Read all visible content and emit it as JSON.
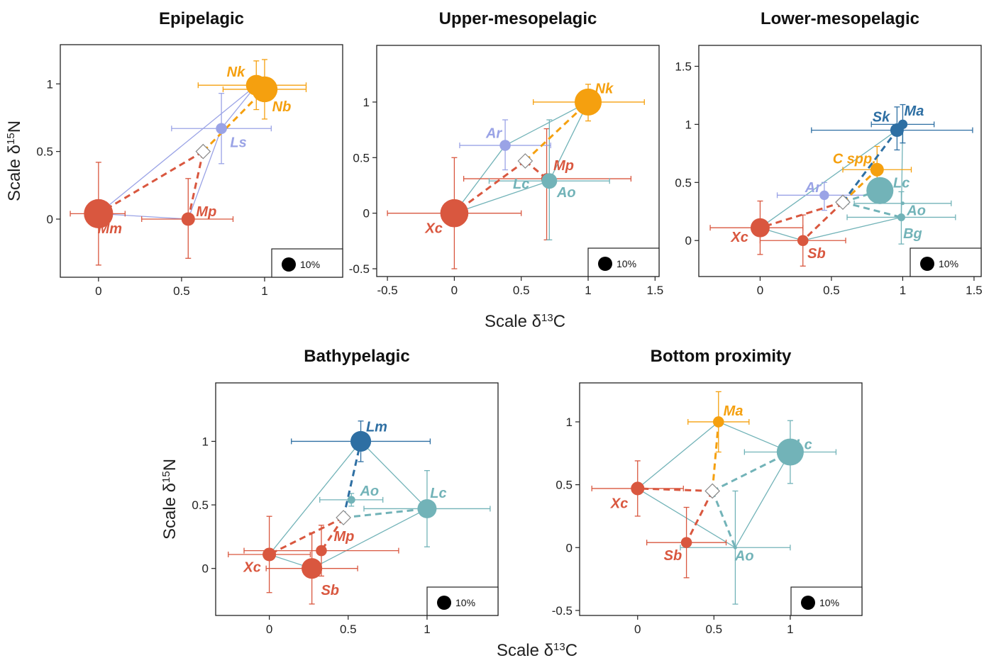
{
  "figure": {
    "shared_xlabel": "Scale δ13C",
    "shared_ylabel": "Scale δ15N",
    "size_legend_label": "10%"
  },
  "colors": {
    "red": "#d9573f",
    "orange": "#f5a00f",
    "lavender": "#9aa3e6",
    "teal": "#72b3b8",
    "navy": "#2e6fa3"
  },
  "chart_data": [
    {
      "type": "scatter",
      "title": "Epipelagic",
      "xlim": [
        -0.23,
        1.47
      ],
      "ylim": [
        -0.43,
        1.29
      ],
      "xticks": [
        0,
        0.5,
        1
      ],
      "xtick_labels": [
        "0",
        "0.5",
        "1"
      ],
      "yticks": [
        0,
        0.5,
        1
      ],
      "ytick_labels": [
        "0",
        "0.5",
        "1"
      ],
      "xlabel": "",
      "ylabel": "Scale δ15N",
      "legend": "10%",
      "points": [
        {
          "name": "Mm",
          "x": 0,
          "y": 0.04,
          "xerr": [
            0.17,
            0.16
          ],
          "yerr": [
            0.38,
            0.38
          ],
          "color": "red",
          "size": 0.14,
          "label_dx": 1.0,
          "label_dy": 1.3
        },
        {
          "name": "Mp",
          "x": 0.54,
          "y": 0,
          "xerr": [
            0.28,
            0.27
          ],
          "yerr": [
            0.29,
            0.3
          ],
          "color": "red",
          "size": 0.03,
          "label_dx": 1.6,
          "label_dy": -0.7
        },
        {
          "name": "Ls",
          "x": 0.74,
          "y": 0.67,
          "xerr": [
            0.3,
            0.3
          ],
          "yerr": [
            0.26,
            0.26
          ],
          "color": "lavender",
          "size": 0.02,
          "label_dx": 1.5,
          "label_dy": 1.2
        },
        {
          "name": "Nk",
          "x": 0.95,
          "y": 0.99,
          "xerr": [
            0.35,
            0.3
          ],
          "yerr": [
            0.18,
            0.18
          ],
          "color": "orange",
          "size": 0.07,
          "label_dx": -1.8,
          "label_dy": -1.2
        },
        {
          "name": "Nb",
          "x": 1.0,
          "y": 0.96,
          "xerr": [
            0.25,
            0.25
          ],
          "yerr": [
            0.22,
            0.22
          ],
          "color": "orange",
          "size": 0.11,
          "label_dx": 1.5,
          "label_dy": 1.5
        }
      ],
      "hull": [
        [
          "Mm",
          "Nk"
        ],
        [
          "Nk",
          "Ls"
        ],
        [
          "Ls",
          "Mp"
        ],
        [
          "Mp",
          "Mm"
        ]
      ],
      "centroid": {
        "x": 0.63,
        "y": 0.5
      },
      "links": [
        {
          "to": "Mm",
          "color": "red"
        },
        {
          "to": "Mp",
          "color": "red"
        },
        {
          "to": "Nb",
          "color": "orange"
        }
      ]
    },
    {
      "type": "scatter",
      "title": "Upper-mesopelagic",
      "xlim": [
        -0.58,
        1.53
      ],
      "ylim": [
        -0.57,
        1.51
      ],
      "xticks": [
        -0.5,
        0,
        0.5,
        1,
        1.5
      ],
      "xtick_labels": [
        "-0.5",
        "0",
        "0.5",
        "1",
        "1.5"
      ],
      "yticks": [
        -0.5,
        0,
        0.5,
        1
      ],
      "ytick_labels": [
        "-0.5",
        "0",
        "0.5",
        "1"
      ],
      "xlabel": "Scale δ13C",
      "ylabel": "",
      "legend": "10%",
      "points": [
        {
          "name": "Xc",
          "x": 0,
          "y": 0,
          "xerr": [
            0.5,
            0.5
          ],
          "yerr": [
            0.5,
            0.5
          ],
          "color": "red",
          "size": 0.13,
          "label_dx": -1.8,
          "label_dy": 1.3
        },
        {
          "name": "Mp",
          "x": 0.69,
          "y": 0.31,
          "xerr": [
            0.62,
            0.63
          ],
          "yerr": [
            0.55,
            0.45
          ],
          "color": "red",
          "size": 0.02,
          "label_dx": 1.5,
          "label_dy": -1.2
        },
        {
          "name": "Ar",
          "x": 0.38,
          "y": 0.61,
          "xerr": [
            0.34,
            0.34
          ],
          "yerr": [
            0.22,
            0.23
          ],
          "color": "lavender",
          "size": 0.02,
          "label_dx": -1.0,
          "label_dy": -1.1
        },
        {
          "name": "Lc",
          "x": 0.5,
          "y": 0.46,
          "xerr": [
            0,
            0
          ],
          "yerr": [
            0,
            0
          ],
          "color": "teal",
          "size": 0,
          "label_dx": 0,
          "label_dy": 1.9
        },
        {
          "name": "Ao",
          "x": 0.71,
          "y": 0.29,
          "xerr": [
            0.45,
            0.45
          ],
          "yerr": [
            0.53,
            0.55
          ],
          "color": "teal",
          "size": 0.04,
          "label_dx": 1.5,
          "label_dy": 1.0
        },
        {
          "name": "Nk",
          "x": 1.0,
          "y": 1.0,
          "xerr": [
            0.41,
            0.42
          ],
          "yerr": [
            0.17,
            0.16
          ],
          "color": "orange",
          "size": 0.12,
          "label_dx": 1.4,
          "label_dy": -1.2
        }
      ],
      "hull": [
        [
          "Xc",
          "Ar"
        ],
        [
          "Ar",
          "Nk"
        ],
        [
          "Nk",
          "Ao"
        ],
        [
          "Ao",
          "Xc"
        ]
      ],
      "centroid": {
        "x": 0.53,
        "y": 0.47
      },
      "links": [
        {
          "to": "Xc",
          "color": "red"
        },
        {
          "to": "Mp",
          "color": "red"
        },
        {
          "to": "Nk",
          "color": "orange"
        }
      ]
    },
    {
      "type": "scatter",
      "title": "Lower-mesopelagic",
      "xlim": [
        -0.43,
        1.55
      ],
      "ylim": [
        -0.31,
        1.68
      ],
      "xticks": [
        0,
        0.5,
        1,
        1.5
      ],
      "xtick_labels": [
        "0",
        "0.5",
        "1",
        "1.5"
      ],
      "yticks": [
        0,
        0.5,
        1,
        1.5
      ],
      "ytick_labels": [
        "0",
        "0.5",
        "1",
        "1.5"
      ],
      "xlabel": "",
      "ylabel": "",
      "legend": "10%",
      "points": [
        {
          "name": "Xc",
          "x": 0,
          "y": 0.11,
          "xerr": [
            0.35,
            0.3
          ],
          "yerr": [
            0.23,
            0.23
          ],
          "color": "red",
          "size": 0.06,
          "label_dx": -1.8,
          "label_dy": 0.8
        },
        {
          "name": "Sb",
          "x": 0.3,
          "y": 0,
          "xerr": [
            0.3,
            0.3
          ],
          "yerr": [
            0.22,
            0.22
          ],
          "color": "red",
          "size": 0.02,
          "label_dx": 1.2,
          "label_dy": 1.1
        },
        {
          "name": "Ar",
          "x": 0.45,
          "y": 0.39,
          "xerr": [
            0.33,
            0.33
          ],
          "yerr": [
            0.13,
            0.11
          ],
          "color": "lavender",
          "size": 0.015,
          "label_dx": -1.0,
          "label_dy": -0.7
        },
        {
          "name": "C spp.",
          "x": 0.82,
          "y": 0.61,
          "xerr": [
            0.24,
            0.24
          ],
          "yerr": [
            0.2,
            0.2
          ],
          "color": "orange",
          "size": 0.03,
          "label_dx": -2.0,
          "label_dy": -1.0
        },
        {
          "name": "Lc",
          "x": 0.84,
          "y": 0.43,
          "xerr": [
            0,
            0
          ],
          "yerr": [
            0,
            0
          ],
          "color": "teal",
          "size": 0.12,
          "label_dx": 1.9,
          "label_dy": -0.7
        },
        {
          "name": "Ao",
          "x": 1.0,
          "y": 0.32,
          "xerr": [
            0.34,
            0.34
          ],
          "yerr": [
            0.0,
            0.0
          ],
          "color": "teal",
          "size": 0.0,
          "label_dx": 1.2,
          "label_dy": 0.6
        },
        {
          "name": "Bg",
          "x": 0.99,
          "y": 0.2,
          "xerr": [
            0.38,
            0.38
          ],
          "yerr": [
            0.23,
            0.22
          ],
          "color": "teal",
          "size": 0.01,
          "label_dx": 1.0,
          "label_dy": 1.4
        },
        {
          "name": "Sk",
          "x": 0.96,
          "y": 0.95,
          "xerr": [
            0.6,
            0.53
          ],
          "yerr": [
            0.17,
            0.2
          ],
          "color": "navy",
          "size": 0.03,
          "label_dx": -1.4,
          "label_dy": -1.2
        },
        {
          "name": "Ma",
          "x": 1.0,
          "y": 1.0,
          "xerr": [
            0.22,
            0.22
          ],
          "yerr": [
            0.16,
            0.17
          ],
          "color": "navy",
          "size": 0.015,
          "label_dx": 1.0,
          "label_dy": -1.2
        }
      ],
      "hull": [
        [
          "Xc",
          "Sk"
        ],
        [
          "Sk",
          "Ma"
        ],
        [
          "Ma",
          "Bg"
        ],
        [
          "Bg",
          "Sb"
        ],
        [
          "Sb",
          "Xc"
        ]
      ],
      "centroid": {
        "x": 0.58,
        "y": 0.33
      },
      "links": [
        {
          "to": "Xc",
          "color": "red"
        },
        {
          "to": "Sb",
          "color": "red"
        },
        {
          "to": "C spp.",
          "color": "orange"
        },
        {
          "to": "Sk",
          "color": "navy"
        },
        {
          "to": "Lc",
          "color": "teal"
        },
        {
          "to": "Bg",
          "color": "teal"
        }
      ]
    },
    {
      "type": "scatter",
      "title": "Bathypelagic",
      "xlim": [
        -0.34,
        1.45
      ],
      "ylim": [
        -0.37,
        1.46
      ],
      "xticks": [
        0,
        0.5,
        1
      ],
      "xtick_labels": [
        "0",
        "0.5",
        "1"
      ],
      "yticks": [
        0,
        0.5,
        1
      ],
      "ytick_labels": [
        "0",
        "0.5",
        "1"
      ],
      "xlabel": "",
      "ylabel": "Scale δ15N",
      "legend": "10%",
      "points": [
        {
          "name": "Xc",
          "x": 0,
          "y": 0.11,
          "xerr": [
            0.26,
            0.26
          ],
          "yerr": [
            0.3,
            0.3
          ],
          "color": "red",
          "size": 0.03,
          "label_dx": -1.5,
          "label_dy": 1.1
        },
        {
          "name": "Mp",
          "x": 0.33,
          "y": 0.14,
          "xerr": [
            0.49,
            0.49
          ],
          "yerr": [
            0.2,
            0.2
          ],
          "color": "red",
          "size": 0.02,
          "label_dx": 2.0,
          "label_dy": -1.3
        },
        {
          "name": "Sb",
          "x": 0.27,
          "y": 0,
          "xerr": [
            0.29,
            0.29
          ],
          "yerr": [
            0.28,
            0.28
          ],
          "color": "red",
          "size": 0.07,
          "label_dx": 1.6,
          "label_dy": 1.9
        },
        {
          "name": "Lm",
          "x": 0.58,
          "y": 1.0,
          "xerr": [
            0.44,
            0.44
          ],
          "yerr": [
            0.16,
            0.16
          ],
          "color": "navy",
          "size": 0.07,
          "label_dx": 1.4,
          "label_dy": -1.3
        },
        {
          "name": "Ao",
          "x": 0.52,
          "y": 0.54,
          "xerr": [
            0.2,
            0.2
          ],
          "yerr": [
            0.05,
            0.05
          ],
          "color": "teal",
          "size": 0.01,
          "label_dx": 1.6,
          "label_dy": -0.8
        },
        {
          "name": "Lc",
          "x": 1.0,
          "y": 0.47,
          "xerr": [
            0.4,
            0.4
          ],
          "yerr": [
            0.3,
            0.3
          ],
          "color": "teal",
          "size": 0.06,
          "label_dx": 1.0,
          "label_dy": -1.4
        }
      ],
      "hull": [
        [
          "Xc",
          "Lm"
        ],
        [
          "Lm",
          "Lc"
        ],
        [
          "Lc",
          "Sb"
        ],
        [
          "Sb",
          "Xc"
        ]
      ],
      "centroid": {
        "x": 0.47,
        "y": 0.4
      },
      "links": [
        {
          "to": "Xc",
          "color": "red"
        },
        {
          "to": "Mp",
          "color": "red"
        },
        {
          "to": "Lm",
          "color": "navy"
        },
        {
          "to": "Lc",
          "color": "teal"
        }
      ]
    },
    {
      "type": "scatter",
      "title": "Bottom proximity",
      "xlim": [
        -0.38,
        1.47
      ],
      "ylim": [
        -0.54,
        1.31
      ],
      "xticks": [
        0,
        0.5,
        1
      ],
      "xtick_labels": [
        "0",
        "0.5",
        "1"
      ],
      "yticks": [
        -0.5,
        0,
        0.5,
        1
      ],
      "ytick_labels": [
        "-0.5",
        "0",
        "0.5",
        "1"
      ],
      "xlabel": "Scale δ13C",
      "ylabel": "",
      "legend": "10%",
      "points": [
        {
          "name": "Xc",
          "x": 0,
          "y": 0.47,
          "xerr": [
            0.3,
            0.3
          ],
          "yerr": [
            0.22,
            0.22
          ],
          "color": "red",
          "size": 0.03,
          "label_dx": -1.6,
          "label_dy": 1.3
        },
        {
          "name": "Sb",
          "x": 0.32,
          "y": 0.04,
          "xerr": [
            0.26,
            0.26
          ],
          "yerr": [
            0.28,
            0.28
          ],
          "color": "red",
          "size": 0.02,
          "label_dx": -1.2,
          "label_dy": 1.1
        },
        {
          "name": "Ma",
          "x": 0.53,
          "y": 1.0,
          "xerr": [
            0.2,
            0.2
          ],
          "yerr": [
            0.24,
            0.24
          ],
          "color": "orange",
          "size": 0.02,
          "label_dx": 1.3,
          "label_dy": -1.0
        },
        {
          "name": "Lc",
          "x": 1.0,
          "y": 0.76,
          "xerr": [
            0.3,
            0.3
          ],
          "yerr": [
            0.25,
            0.25
          ],
          "color": "teal",
          "size": 0.12,
          "label_dx": 1.2,
          "label_dy": -0.7
        },
        {
          "name": "Ao",
          "x": 0.64,
          "y": 0,
          "xerr": [
            0.36,
            0.36
          ],
          "yerr": [
            0.45,
            0.45
          ],
          "color": "teal",
          "size": 0.0,
          "label_dx": 0.8,
          "label_dy": 0.7
        }
      ],
      "hull": [
        [
          "Xc",
          "Ma"
        ],
        [
          "Ma",
          "Lc"
        ],
        [
          "Lc",
          "Ao"
        ],
        [
          "Ao",
          "Xc"
        ]
      ],
      "centroid": {
        "x": 0.49,
        "y": 0.45
      },
      "links": [
        {
          "to": "Xc",
          "color": "red"
        },
        {
          "to": "Sb",
          "color": "red"
        },
        {
          "to": "Ma",
          "color": "orange"
        },
        {
          "to": "Lc",
          "color": "teal"
        },
        {
          "to": "Ao",
          "color": "teal"
        }
      ]
    }
  ]
}
